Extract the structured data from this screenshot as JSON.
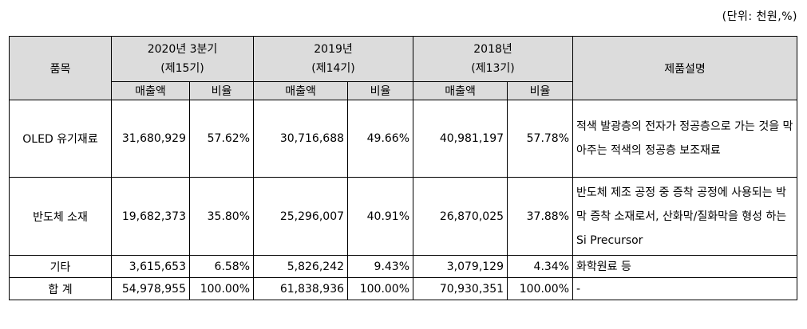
{
  "unit_note": "(단위: 천원,%)",
  "headers": {
    "item": "품목",
    "periods": [
      {
        "year": "2020년 3분기",
        "term": "(제15기)"
      },
      {
        "year": "2019년",
        "term": "(제14기)"
      },
      {
        "year": "2018년",
        "term": "(제13기)"
      }
    ],
    "sales": "매출액",
    "ratio": "비율",
    "description": "제품설명"
  },
  "rows": [
    {
      "item": "OLED 유기재료",
      "values": [
        "31,680,929",
        "57.62%",
        "30,716,688",
        "49.66%",
        "40,981,197",
        "57.78%"
      ],
      "description": "적색 발광층의 전자가 정공층으로 가는 것을 막아주는 적색의 정공층 보조재료"
    },
    {
      "item": "반도체 소재",
      "values": [
        "19,682,373",
        "35.80%",
        "25,296,007",
        "40.91%",
        "26,870,025",
        "37.88%"
      ],
      "description": "반도체 제조 공정 중 증착 공정에 사용되는 박막 증착 소재로서, 산화막/질화막을 형성 하는 Si Precursor"
    },
    {
      "item": "기타",
      "values": [
        "3,615,653",
        "6.58%",
        "5,826,242",
        "9.43%",
        "3,079,129",
        "4.34%"
      ],
      "description": "화학원료 등"
    },
    {
      "item": "합 계",
      "values": [
        "54,978,955",
        "100.00%",
        "61,838,936",
        "100.00%",
        "70,930,351",
        "100.00%"
      ],
      "description": "-"
    }
  ]
}
